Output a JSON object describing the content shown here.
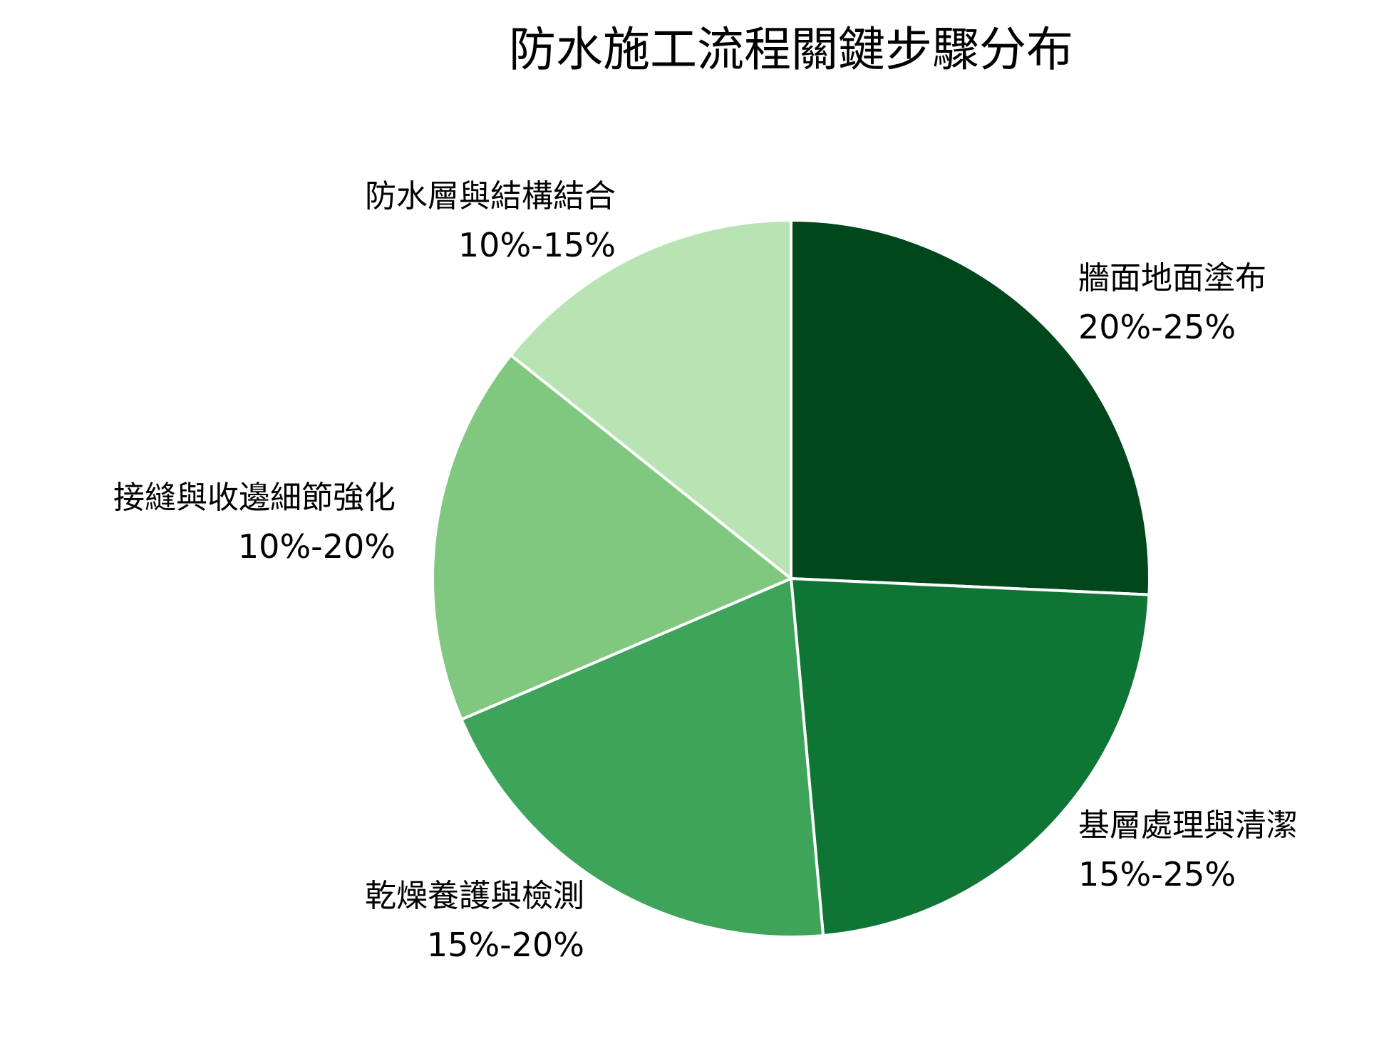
{
  "chart_data": {
    "type": "pie",
    "title": "防水施工流程關鍵步驟分布",
    "slices": [
      {
        "label": "牆面地面塗布",
        "range": "20%-25%",
        "value": 22.5,
        "color": "#00471b"
      },
      {
        "label": "基層處理與清潔",
        "range": "15%-25%",
        "value": 20,
        "color": "#0f7535"
      },
      {
        "label": "乾燥養護與檢測",
        "range": "15%-20%",
        "value": 17.5,
        "color": "#3ea45a"
      },
      {
        "label": "接縫與收邊細節強化",
        "range": "10%-20%",
        "value": 15,
        "color": "#80c880"
      },
      {
        "label": "防水層與結構結合",
        "range": "10%-15%",
        "value": 12.5,
        "color": "#b8e3b2"
      }
    ],
    "start_angle": "12 o'clock",
    "direction": "clockwise",
    "slice_border_color": "#ffffff"
  }
}
